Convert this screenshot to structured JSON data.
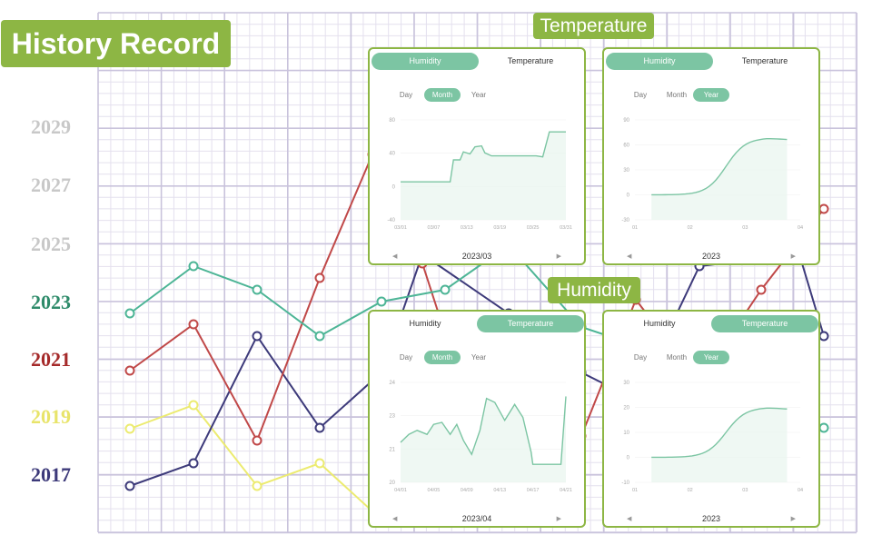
{
  "page": {
    "title": "History Record",
    "sections": {
      "temperature": "Temperature",
      "humidity": "Humidity"
    },
    "years": [
      {
        "label": "2029",
        "color": "#c8c8c8"
      },
      {
        "label": "2027",
        "color": "#c8c8c8"
      },
      {
        "label": "2025",
        "color": "#c8c8c8"
      },
      {
        "label": "2023",
        "color": "#2e8b6a"
      },
      {
        "label": "2021",
        "color": "#a52a2a"
      },
      {
        "label": "2019",
        "color": "#e8e46a"
      },
      {
        "label": "2017",
        "color": "#3d3a7a"
      }
    ]
  },
  "colors": {
    "accent": "#8db644",
    "chart_green": "#7cc5a3",
    "series_teal": "#4db596",
    "series_red": "#c04848",
    "series_navy": "#3d3a7a",
    "series_yellow": "#eceb70",
    "grid": "#c9c3dc"
  },
  "cards": [
    {
      "tabs": [
        "Humidity",
        "Temperature"
      ],
      "active_tab": 0,
      "periods": [
        "Day",
        "Month",
        "Year"
      ],
      "active_period": 1,
      "y_ticks": [
        "80",
        "40",
        "0",
        "-40"
      ],
      "x_ticks": [
        "03/01",
        "03/07",
        "03/13",
        "03/19",
        "03/25",
        "03/31"
      ],
      "footer": "2023/03",
      "prev_icon": "triangle-left-icon",
      "next_icon": "triangle-right-icon"
    },
    {
      "tabs": [
        "Humidity",
        "Temperature"
      ],
      "active_tab": 0,
      "periods": [
        "Day",
        "Month",
        "Year"
      ],
      "active_period": 2,
      "y_ticks": [
        "90",
        "60",
        "30",
        "0",
        "-30"
      ],
      "x_ticks": [
        "01",
        "02",
        "03",
        "04"
      ],
      "footer": "2023",
      "prev_icon": "triangle-left-icon",
      "next_icon": "triangle-right-icon"
    },
    {
      "tabs": [
        "Humidity",
        "Temperature"
      ],
      "active_tab": 1,
      "periods": [
        "Day",
        "Month",
        "Year"
      ],
      "active_period": 1,
      "y_ticks": [
        "24",
        "23",
        "21",
        "20"
      ],
      "x_ticks": [
        "04/01",
        "04/05",
        "04/09",
        "04/13",
        "04/17",
        "04/21"
      ],
      "footer": "2023/04",
      "prev_icon": "triangle-left-icon",
      "next_icon": "triangle-right-icon"
    },
    {
      "tabs": [
        "Humidity",
        "Temperature"
      ],
      "active_tab": 1,
      "periods": [
        "Day",
        "Month",
        "Year"
      ],
      "active_period": 2,
      "y_ticks": [
        "30",
        "20",
        "10",
        "0",
        "-10"
      ],
      "x_ticks": [
        "01",
        "02",
        "03",
        "04"
      ],
      "footer": "2023",
      "prev_icon": "triangle-left-icon",
      "next_icon": "triangle-right-icon"
    }
  ]
}
